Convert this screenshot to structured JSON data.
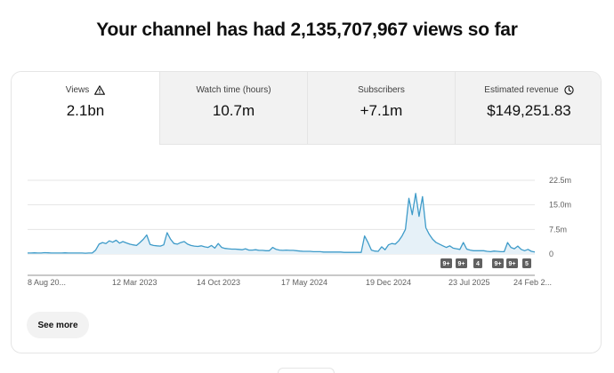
{
  "headline": "Your channel has had 2,135,707,967 views so far",
  "tabs": [
    {
      "label": "Views",
      "value": "2.1bn",
      "icon": "warning-icon"
    },
    {
      "label": "Watch time (hours)",
      "value": "10.7m",
      "icon": ""
    },
    {
      "label": "Subscribers",
      "value": "+7.1m",
      "icon": ""
    },
    {
      "label": "Estimated revenue",
      "value": "$149,251.83",
      "icon": "clock-icon"
    }
  ],
  "chart_data": {
    "type": "area",
    "series": [
      {
        "name": "Views",
        "values": [
          0.3,
          0.3,
          0.35,
          0.3,
          0.3,
          0.4,
          0.35,
          0.3,
          0.3,
          0.3,
          0.3,
          0.35,
          0.3,
          0.3,
          0.3,
          0.3,
          0.3,
          0.25,
          0.3,
          0.3,
          1.2,
          3.0,
          3.5,
          3.2,
          4.0,
          3.6,
          4.2,
          3.3,
          3.8,
          3.4,
          3.0,
          2.8,
          2.6,
          3.5,
          4.5,
          5.8,
          2.9,
          2.6,
          2.5,
          2.4,
          2.8,
          6.5,
          4.5,
          3.2,
          3.0,
          3.5,
          3.8,
          3.0,
          2.6,
          2.4,
          2.3,
          2.5,
          2.2,
          2.0,
          2.6,
          1.8,
          3.2,
          2.0,
          1.7,
          1.6,
          1.5,
          1.5,
          1.4,
          1.3,
          1.6,
          1.2,
          1.2,
          1.3,
          1.1,
          1.1,
          1.0,
          1.0,
          2.0,
          1.4,
          1.2,
          1.1,
          1.2,
          1.1,
          1.1,
          1.0,
          0.9,
          0.8,
          0.8,
          0.8,
          0.7,
          0.7,
          0.7,
          0.6,
          0.6,
          0.6,
          0.6,
          0.6,
          0.6,
          0.5,
          0.5,
          0.5,
          0.5,
          0.5,
          0.5,
          5.5,
          3.5,
          1.2,
          0.9,
          0.8,
          2.2,
          1.3,
          2.8,
          3.2,
          3.0,
          4.0,
          5.5,
          7.5,
          17.0,
          12.0,
          18.5,
          11.5,
          17.5,
          8.0,
          6.0,
          4.5,
          3.5,
          3.0,
          2.5,
          2.0,
          2.5,
          1.8,
          1.6,
          1.4,
          3.5,
          1.5,
          1.2,
          1.0,
          1.0,
          1.0,
          1.0,
          0.8,
          0.7,
          0.9,
          0.8,
          0.7,
          0.7,
          3.5,
          2.0,
          1.6,
          2.4,
          1.4,
          1.0,
          1.4,
          0.8,
          0.6
        ]
      }
    ],
    "x_tick_labels": [
      "8 Aug 20...",
      "12 Mar 2023",
      "14 Oct 2023",
      "17 May 2024",
      "19 Dec 2024",
      "23 Jul 2025",
      "24 Feb 2..."
    ],
    "y_tick_labels": [
      "22.5m",
      "15.0m",
      "7.5m",
      "0"
    ],
    "ylim": [
      0,
      22.5
    ],
    "grid": true,
    "annotations": [
      "9+",
      "9+",
      "4",
      "9+",
      "9+",
      "5"
    ]
  },
  "see_more_label": "See more"
}
